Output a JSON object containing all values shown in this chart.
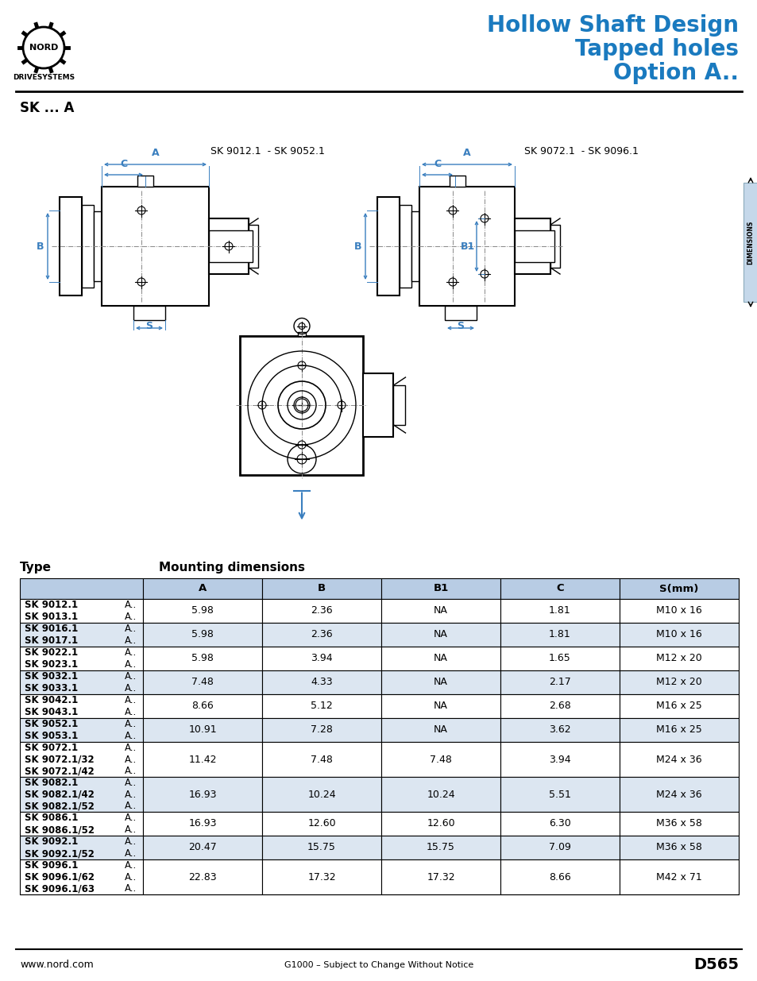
{
  "title_line1": "Hollow Shaft Design",
  "title_line2": "Tapped holes",
  "title_line3": "Option A..",
  "title_color": "#1a7abf",
  "subtitle": "SK ... A",
  "header_left_label": "DRIVESYSTEMS",
  "table_header_bg": "#b8cce4",
  "table_row_bg_light": "#dce6f1",
  "table_row_bg_white": "#ffffff",
  "table_rows": [
    {
      "types": [
        "SK 9012.1",
        "SK 9013.1"
      ],
      "suffixes": [
        "A..",
        "A.."
      ],
      "A": "5.98",
      "B": "2.36",
      "B1": "NA",
      "C": "1.81",
      "S": "M10 x 16",
      "bg": "white"
    },
    {
      "types": [
        "SK 9016.1",
        "SK 9017.1"
      ],
      "suffixes": [
        "A..",
        "A.."
      ],
      "A": "5.98",
      "B": "2.36",
      "B1": "NA",
      "C": "1.81",
      "S": "M10 x 16",
      "bg": "light"
    },
    {
      "types": [
        "SK 9022.1",
        "SK 9023.1"
      ],
      "suffixes": [
        "A..",
        "A.."
      ],
      "A": "5.98",
      "B": "3.94",
      "B1": "NA",
      "C": "1.65",
      "S": "M12 x 20",
      "bg": "white"
    },
    {
      "types": [
        "SK 9032.1",
        "SK 9033.1"
      ],
      "suffixes": [
        "A..",
        "A.."
      ],
      "A": "7.48",
      "B": "4.33",
      "B1": "NA",
      "C": "2.17",
      "S": "M12 x 20",
      "bg": "light"
    },
    {
      "types": [
        "SK 9042.1",
        "SK 9043.1"
      ],
      "suffixes": [
        "A..",
        "A.."
      ],
      "A": "8.66",
      "B": "5.12",
      "B1": "NA",
      "C": "2.68",
      "S": "M16 x 25",
      "bg": "white"
    },
    {
      "types": [
        "SK 9052.1",
        "SK 9053.1"
      ],
      "suffixes": [
        "A..",
        "A.."
      ],
      "A": "10.91",
      "B": "7.28",
      "B1": "NA",
      "C": "3.62",
      "S": "M16 x 25",
      "bg": "light"
    },
    {
      "types": [
        "SK 9072.1",
        "SK 9072.1/32",
        "SK 9072.1/42"
      ],
      "suffixes": [
        "A..",
        "A..",
        "A.."
      ],
      "A": "11.42",
      "B": "7.48",
      "B1": "7.48",
      "C": "3.94",
      "S": "M24 x 36",
      "bg": "white"
    },
    {
      "types": [
        "SK 9082.1",
        "SK 9082.1/42",
        "SK 9082.1/52"
      ],
      "suffixes": [
        "A..",
        "A..",
        "A.."
      ],
      "A": "16.93",
      "B": "10.24",
      "B1": "10.24",
      "C": "5.51",
      "S": "M24 x 36",
      "bg": "light"
    },
    {
      "types": [
        "SK 9086.1",
        "SK 9086.1/52"
      ],
      "suffixes": [
        "A..",
        "A.."
      ],
      "A": "16.93",
      "B": "12.60",
      "B1": "12.60",
      "C": "6.30",
      "S": "M36 x 58",
      "bg": "white"
    },
    {
      "types": [
        "SK 9092.1",
        "SK 9092.1/52"
      ],
      "suffixes": [
        "A..",
        "A.."
      ],
      "A": "20.47",
      "B": "15.75",
      "B1": "15.75",
      "C": "7.09",
      "S": "M36 x 58",
      "bg": "light"
    },
    {
      "types": [
        "SK 9096.1",
        "SK 9096.1/62",
        "SK 9096.1/63"
      ],
      "suffixes": [
        "A..",
        "A..",
        "A.."
      ],
      "A": "22.83",
      "B": "17.32",
      "B1": "17.32",
      "C": "8.66",
      "S": "M42 x 71",
      "bg": "white"
    }
  ],
  "footer_left": "www.nord.com",
  "footer_center": "G1000 – Subject to Change Without Notice",
  "footer_right": "D565",
  "diagram_label_left": "SK 9012.1  - SK 9052.1",
  "diagram_label_right": "SK 9072.1  - SK 9096.1",
  "type_label": "Type",
  "mounting_label": "Mounting dimensions",
  "blue": "#1a7abf",
  "dim_blue": "#3a7fbf"
}
